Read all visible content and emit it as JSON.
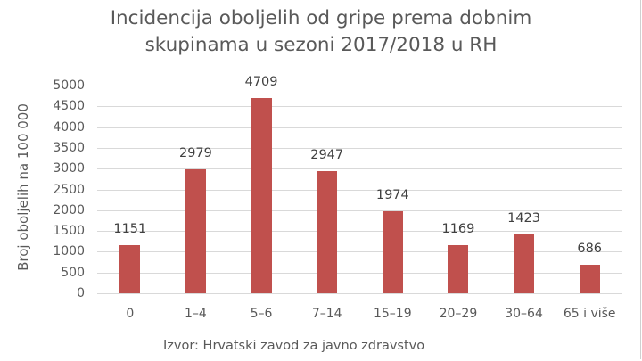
{
  "chart_data": {
    "type": "bar",
    "title": "Incidencija oboljelih od gripe prema dobnim skupinama u sezoni 2017/2018 u RH",
    "title_lines": [
      "Incidencija oboljelih od gripe prema dobnim",
      "skupinama u sezoni 2017/2018 u RH"
    ],
    "xlabel": "",
    "ylabel": "Broj oboljelih na 100 000",
    "categories": [
      "0",
      "1–4",
      "5–6",
      "7–14",
      "15–19",
      "20–29",
      "30–64",
      "65 i više"
    ],
    "values": [
      1151,
      2979,
      4709,
      2947,
      1974,
      1169,
      1423,
      686
    ],
    "ylim": [
      0,
      5000
    ],
    "yticks": [
      0,
      500,
      1000,
      1500,
      2000,
      2500,
      3000,
      3500,
      4000,
      4500,
      5000
    ],
    "grid": true,
    "legend": null,
    "data_labels": true,
    "bar_color": "#c0504d",
    "source": "Izvor: Hrvatski zavod za javno zdravstvo"
  }
}
